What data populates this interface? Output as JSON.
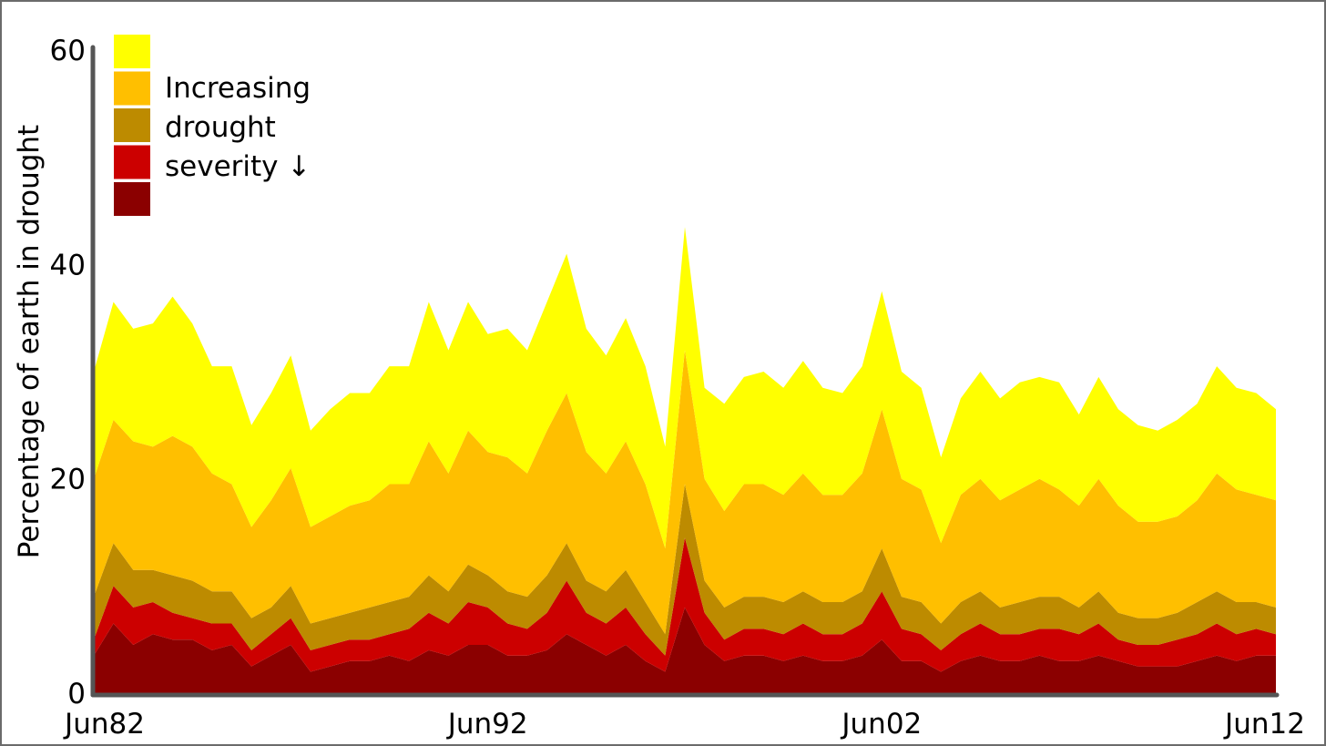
{
  "chart_data": {
    "type": "area",
    "stacked": true,
    "title": "",
    "xlabel": "",
    "ylabel": "Percentage of earth in drought",
    "ylim": [
      0,
      60
    ],
    "yticks": [
      "0",
      "20",
      "40",
      "60"
    ],
    "xlim": [
      "Jun82",
      "Jun12"
    ],
    "xticks": [
      "Jun82",
      "Jun92",
      "Jun02",
      "Jun12"
    ],
    "grid": false,
    "legend_position": "top-left",
    "legend_lines": [
      "Increasing",
      "drought",
      "severity ↓"
    ],
    "x": [
      1982.5,
      1983.0,
      1983.5,
      1984.0,
      1984.5,
      1985.0,
      1985.5,
      1986.0,
      1986.5,
      1987.0,
      1987.5,
      1988.0,
      1988.5,
      1989.0,
      1989.5,
      1990.0,
      1990.5,
      1991.0,
      1991.5,
      1992.0,
      1992.5,
      1993.0,
      1993.5,
      1994.0,
      1994.5,
      1995.0,
      1995.5,
      1996.0,
      1996.5,
      1997.0,
      1997.5,
      1998.0,
      1998.5,
      1999.0,
      1999.5,
      2000.0,
      2000.5,
      2001.0,
      2001.5,
      2002.0,
      2002.5,
      2003.0,
      2003.5,
      2004.0,
      2004.5,
      2005.0,
      2005.5,
      2006.0,
      2006.5,
      2007.0,
      2007.5,
      2008.0,
      2008.5,
      2009.0,
      2009.5,
      2010.0,
      2010.5,
      2011.0,
      2011.5,
      2012.0,
      2012.5
    ],
    "series": [
      {
        "color": "#8b0000",
        "values": [
          3.5,
          6.5,
          4.5,
          5.5,
          5.0,
          5.0,
          4.0,
          4.5,
          2.5,
          3.5,
          4.5,
          2.0,
          2.5,
          3.0,
          3.0,
          3.5,
          3.0,
          4.0,
          3.5,
          4.5,
          4.5,
          3.5,
          3.5,
          4.0,
          5.5,
          4.5,
          3.5,
          4.5,
          3.0,
          2.0,
          8.0,
          4.5,
          3.0,
          3.5,
          3.5,
          3.0,
          3.5,
          3.0,
          3.0,
          3.5,
          5.0,
          3.0,
          3.0,
          2.0,
          3.0,
          3.5,
          3.0,
          3.0,
          3.5,
          3.0,
          3.0,
          3.5,
          3.0,
          2.5,
          2.5,
          2.5,
          3.0,
          3.5,
          3.0,
          3.5,
          3.5
        ]
      },
      {
        "color": "#cc0000",
        "values": [
          1.5,
          3.5,
          3.5,
          3.0,
          2.5,
          2.0,
          2.5,
          2.0,
          1.5,
          2.0,
          2.5,
          2.0,
          2.0,
          2.0,
          2.0,
          2.0,
          3.0,
          3.5,
          3.0,
          4.0,
          3.5,
          3.0,
          2.5,
          3.5,
          5.0,
          3.0,
          3.0,
          3.5,
          2.5,
          1.5,
          6.5,
          3.0,
          2.0,
          2.5,
          2.5,
          2.5,
          3.0,
          2.5,
          2.5,
          3.0,
          4.5,
          3.0,
          2.5,
          2.0,
          2.5,
          3.0,
          2.5,
          2.5,
          2.5,
          3.0,
          2.5,
          3.0,
          2.0,
          2.0,
          2.0,
          2.5,
          2.5,
          3.0,
          2.5,
          2.5,
          2.0
        ]
      },
      {
        "color": "#bd8b00",
        "values": [
          4.0,
          4.0,
          3.5,
          3.0,
          3.5,
          3.5,
          3.0,
          3.0,
          3.0,
          2.5,
          3.0,
          2.5,
          2.5,
          2.5,
          3.0,
          3.0,
          3.0,
          3.5,
          3.0,
          3.5,
          3.0,
          3.0,
          3.0,
          3.5,
          3.5,
          3.0,
          3.0,
          3.5,
          3.0,
          2.0,
          5.0,
          3.0,
          3.0,
          3.0,
          3.0,
          3.0,
          3.0,
          3.0,
          3.0,
          3.0,
          4.0,
          3.0,
          3.0,
          2.5,
          3.0,
          3.0,
          2.5,
          3.0,
          3.0,
          3.0,
          2.5,
          3.0,
          2.5,
          2.5,
          2.5,
          2.5,
          3.0,
          3.0,
          3.0,
          2.5,
          2.5
        ]
      },
      {
        "color": "#ffbf00",
        "values": [
          11.0,
          11.5,
          12.0,
          11.5,
          13.0,
          12.5,
          11.0,
          10.0,
          8.5,
          10.0,
          11.0,
          9.0,
          9.5,
          10.0,
          10.0,
          11.0,
          10.5,
          12.5,
          11.0,
          12.5,
          11.5,
          12.5,
          11.5,
          13.5,
          14.0,
          12.0,
          11.0,
          12.0,
          11.0,
          8.0,
          12.5,
          9.5,
          9.0,
          10.5,
          10.5,
          10.0,
          11.0,
          10.0,
          10.0,
          11.0,
          13.0,
          11.0,
          10.5,
          7.5,
          10.0,
          10.5,
          10.0,
          10.5,
          11.0,
          10.0,
          9.5,
          10.5,
          10.0,
          9.0,
          9.0,
          9.0,
          9.5,
          11.0,
          10.5,
          10.0,
          10.0
        ]
      },
      {
        "color": "#ffff00",
        "values": [
          10.0,
          11.0,
          10.5,
          11.5,
          13.0,
          11.5,
          10.0,
          11.0,
          9.5,
          10.0,
          10.5,
          9.0,
          10.0,
          10.5,
          10.0,
          11.0,
          11.0,
          13.0,
          11.5,
          12.0,
          11.0,
          12.0,
          11.5,
          12.0,
          13.0,
          11.5,
          11.0,
          11.5,
          11.0,
          9.5,
          11.5,
          8.5,
          10.0,
          10.0,
          10.5,
          10.0,
          10.5,
          10.0,
          9.5,
          10.0,
          11.0,
          10.0,
          9.5,
          8.0,
          9.0,
          10.0,
          9.5,
          10.0,
          9.5,
          10.0,
          8.5,
          9.5,
          9.0,
          9.0,
          8.5,
          9.0,
          9.0,
          10.0,
          9.5,
          9.5,
          8.5
        ]
      }
    ]
  }
}
